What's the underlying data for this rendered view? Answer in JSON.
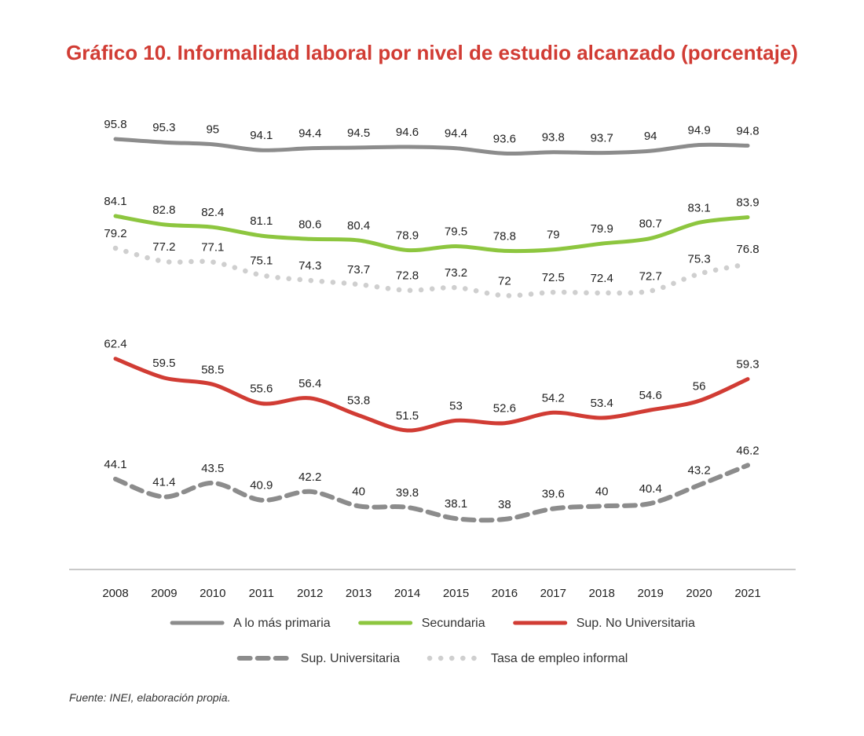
{
  "title": "Gráfico 10. Informalidad laboral por nivel de estudio alcanzado (porcentaje)",
  "source": "Fuente: INEI, elaboración propia.",
  "chart_data": {
    "type": "line",
    "title": "Gráfico 10. Informalidad laboral por nivel de estudio alcanzado (porcentaje)",
    "xlabel": "",
    "ylabel": "",
    "ylim": [
      35,
      97
    ],
    "grid": false,
    "legend": "bottom",
    "categories": [
      "2008",
      "2009",
      "2010",
      "2011",
      "2012",
      "2013",
      "2014",
      "2015",
      "2016",
      "2017",
      "2018",
      "2019",
      "2020",
      "2021"
    ],
    "series": [
      {
        "name": "A lo más primaria",
        "color": "#8c8c8c",
        "style": "solid",
        "values": [
          95.8,
          95.3,
          95,
          94.1,
          94.4,
          94.5,
          94.6,
          94.4,
          93.6,
          93.8,
          93.7,
          94,
          94.9,
          94.8
        ],
        "labels": [
          "95.8",
          "95.3",
          "95",
          "94.1",
          "94.4",
          "94.5",
          "94.6",
          "94.4",
          "93.6",
          "93.8",
          "93.7",
          "94",
          "94.9",
          "94.8"
        ]
      },
      {
        "name": "Secundaria",
        "color": "#8dc63f",
        "style": "solid",
        "values": [
          84.1,
          82.8,
          82.4,
          81.1,
          80.6,
          80.4,
          78.9,
          79.5,
          78.8,
          79,
          79.9,
          80.7,
          83.1,
          83.9
        ],
        "labels": [
          "84.1",
          "82.8",
          "82.4",
          "81.1",
          "80.6",
          "80.4",
          "78.9",
          "79.5",
          "78.8",
          "79",
          "79.9",
          "80.7",
          "83.1",
          "83.9"
        ]
      },
      {
        "name": "Sup. No Universitaria",
        "color": "#d13c34",
        "style": "solid",
        "values": [
          62.4,
          59.5,
          58.5,
          55.6,
          56.4,
          53.8,
          51.5,
          53,
          52.6,
          54.2,
          53.4,
          54.6,
          56,
          59.3
        ],
        "labels": [
          "62.4",
          "59.5",
          "58.5",
          "55.6",
          "56.4",
          "53.8",
          "51.5",
          "53",
          "52.6",
          "54.2",
          "53.4",
          "54.6",
          "56",
          "59.3"
        ]
      },
      {
        "name": "Sup. Universitaria",
        "color": "#8c8c8c",
        "style": "dashed",
        "values": [
          44.1,
          41.4,
          43.5,
          40.9,
          42.2,
          40,
          39.8,
          38.1,
          38,
          39.6,
          40,
          40.4,
          43.2,
          46.2
        ],
        "labels": [
          "44.1",
          "41.4",
          "43.5",
          "40.9",
          "42.2",
          "40",
          "39.8",
          "38.1",
          "38",
          "39.6",
          "40",
          "40.4",
          "43.2",
          "46.2"
        ]
      },
      {
        "name": "Tasa de empleo informal",
        "color": "#cfcfcf",
        "style": "dotted",
        "values": [
          79.2,
          77.2,
          77.1,
          75.1,
          74.3,
          73.7,
          72.8,
          73.2,
          72,
          72.5,
          72.4,
          72.7,
          75.3,
          76.8
        ],
        "labels": [
          "79.2",
          "77.2",
          "77.1",
          "75.1",
          "74.3",
          "73.7",
          "72.8",
          "73.2",
          "72",
          "72.5",
          "72.4",
          "72.7",
          "75.3",
          "76.8"
        ]
      }
    ],
    "legend_rows": [
      [
        0,
        1,
        2
      ],
      [
        3,
        4
      ]
    ]
  }
}
